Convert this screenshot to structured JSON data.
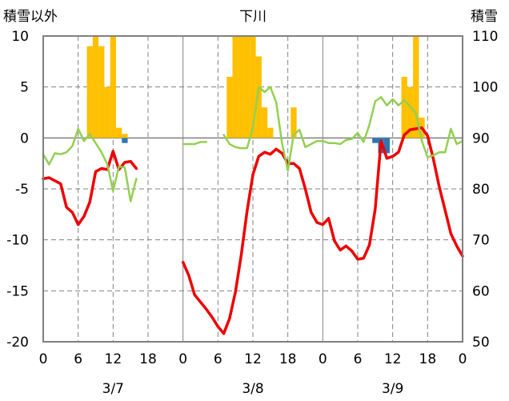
{
  "chart_data": {
    "type": "bar+line",
    "title": "下川",
    "left_axis_label": "積雪以外",
    "right_axis_label": "積雪",
    "left_ylim": [
      -20,
      10
    ],
    "right_ylim": [
      50,
      110
    ],
    "left_ticks": [
      "10",
      "5",
      "0",
      "-5",
      "-10",
      "-15",
      "-20"
    ],
    "left_tick_values": [
      10,
      5,
      0,
      -5,
      -10,
      -15,
      -20
    ],
    "right_ticks": [
      "110",
      "100",
      "90",
      "80",
      "70",
      "60",
      "50"
    ],
    "right_tick_values": [
      110,
      100,
      90,
      80,
      70,
      60,
      50
    ],
    "x_unit": "hour",
    "xlim": [
      0,
      72
    ],
    "x_ticks": [
      "0",
      "6",
      "12",
      "18",
      "0",
      "6",
      "12",
      "18",
      "0",
      "6",
      "12",
      "18",
      "0"
    ],
    "x_tick_hours": [
      0,
      6,
      12,
      18,
      24,
      30,
      36,
      42,
      48,
      54,
      60,
      66,
      72
    ],
    "day_labels": [
      {
        "text": "3/7",
        "hour": 12
      },
      {
        "text": "3/8",
        "hour": 36
      },
      {
        "text": "3/9",
        "hour": 60
      }
    ],
    "grid": {
      "dashed_hours": [
        6,
        12,
        18,
        30,
        36,
        42,
        54,
        60,
        66
      ],
      "solid_hours": [
        24,
        48
      ],
      "dashed_values": [
        5,
        -5,
        -10,
        -15
      ],
      "zero_line": 0
    },
    "series": [
      {
        "name": "snowfall",
        "type": "bar",
        "color": "#ffc000",
        "axis": "left",
        "x": [
          8,
          9,
          10,
          11,
          12,
          13,
          14,
          32,
          33,
          34,
          35,
          36,
          37,
          38,
          39,
          43,
          62,
          63,
          64,
          65
        ],
        "values": [
          9,
          10,
          9,
          5,
          10,
          1,
          0.4,
          6,
          10,
          10,
          10,
          10,
          8,
          3,
          1,
          3,
          6,
          5,
          10,
          2
        ]
      },
      {
        "name": "precipitation_negative",
        "type": "bar",
        "color": "#2e75b6",
        "axis": "left",
        "x": [
          14,
          57,
          58,
          59
        ],
        "values": [
          -0.5,
          -0.5,
          -1.5,
          -1.5
        ]
      },
      {
        "name": "temperature",
        "type": "line",
        "color": "#ee0000",
        "axis": "left",
        "segments": [
          [
            [
              0,
              -4
            ],
            [
              1,
              -3.9
            ],
            [
              2,
              -4.2
            ],
            [
              3,
              -4.5
            ],
            [
              4,
              -6.8
            ],
            [
              5,
              -7.3
            ],
            [
              6,
              -8.5
            ],
            [
              7,
              -7.7
            ],
            [
              8,
              -6.3
            ],
            [
              9,
              -3.3
            ],
            [
              10,
              -3.0
            ],
            [
              11,
              -3.1
            ],
            [
              12,
              -1.3
            ],
            [
              13,
              -3.1
            ],
            [
              14,
              -2.4
            ],
            [
              15,
              -2.3
            ],
            [
              16,
              -3.0
            ]
          ],
          [
            [
              24,
              -12.2
            ],
            [
              25,
              -13.5
            ],
            [
              26,
              -15.4
            ],
            [
              27,
              -16.1
            ],
            [
              28,
              -16.8
            ],
            [
              29,
              -17.6
            ],
            [
              30,
              -18.5
            ],
            [
              31,
              -19.2
            ],
            [
              32,
              -17.7
            ],
            [
              33,
              -15.1
            ],
            [
              34,
              -11.5
            ],
            [
              35,
              -7.2
            ],
            [
              36,
              -3.6
            ],
            [
              37,
              -1.8
            ],
            [
              38,
              -1.4
            ],
            [
              39,
              -1.6
            ],
            [
              40,
              -1.1
            ],
            [
              41,
              -1.5
            ],
            [
              42,
              -2.5
            ],
            [
              43,
              -2.5
            ],
            [
              44,
              -3.0
            ],
            [
              45,
              -5.0
            ],
            [
              46,
              -7.3
            ],
            [
              47,
              -8.3
            ],
            [
              48,
              -8.5
            ],
            [
              49,
              -7.9
            ],
            [
              50,
              -10.1
            ],
            [
              51,
              -11.0
            ],
            [
              52,
              -10.6
            ],
            [
              53,
              -11.1
            ],
            [
              54,
              -11.9
            ],
            [
              55,
              -11.8
            ],
            [
              56,
              -10.5
            ],
            [
              57,
              -7.0
            ],
            [
              58,
              -0.3
            ],
            [
              59,
              -2.0
            ],
            [
              60,
              -1.8
            ],
            [
              61,
              -1.4
            ],
            [
              62,
              0.3
            ],
            [
              63,
              0.8
            ],
            [
              64,
              0.9
            ],
            [
              65,
              1.0
            ],
            [
              66,
              0.2
            ],
            [
              67,
              -2.1
            ],
            [
              68,
              -4.8
            ],
            [
              69,
              -7.1
            ],
            [
              70,
              -9.4
            ],
            [
              71,
              -10.6
            ],
            [
              72,
              -11.6
            ]
          ]
        ]
      },
      {
        "name": "wind",
        "type": "line",
        "color": "#92d050",
        "axis": "left",
        "segments": [
          [
            [
              0,
              -1.6
            ],
            [
              1,
              -2.6
            ],
            [
              2,
              -1.5
            ],
            [
              3,
              -1.6
            ],
            [
              4,
              -1.4
            ],
            [
              5,
              -0.8
            ],
            [
              6,
              0.9
            ],
            [
              7,
              -0.3
            ],
            [
              8,
              0.4
            ],
            [
              9,
              -0.5
            ],
            [
              10,
              -1.4
            ],
            [
              11,
              -2.6
            ],
            [
              12,
              -5.2
            ],
            [
              13,
              -2.8
            ],
            [
              14,
              -2.9
            ],
            [
              15,
              -6.2
            ],
            [
              16,
              -4.0
            ]
          ],
          [
            [
              24,
              -0.6
            ],
            [
              25,
              -0.6
            ],
            [
              26,
              -0.6
            ],
            [
              27,
              -0.4
            ],
            [
              28,
              -0.4
            ]
          ],
          [
            [
              31,
              0.3
            ],
            [
              32,
              -0.6
            ],
            [
              33,
              -0.9
            ],
            [
              34,
              -1.0
            ],
            [
              35,
              -1.0
            ],
            [
              36,
              1.0
            ],
            [
              37,
              5.0
            ],
            [
              38,
              4.5
            ],
            [
              39,
              5.0
            ],
            [
              40,
              3.5
            ],
            [
              41,
              -0.5
            ],
            [
              42,
              -3.2
            ],
            [
              43,
              0.3
            ],
            [
              44,
              0.8
            ],
            [
              45,
              -0.9
            ],
            [
              46,
              -0.6
            ],
            [
              47,
              -0.3
            ],
            [
              48,
              -0.3
            ],
            [
              49,
              -0.5
            ],
            [
              50,
              -0.5
            ],
            [
              51,
              -0.6
            ],
            [
              52,
              -0.2
            ],
            [
              53,
              -0.1
            ],
            [
              54,
              0.5
            ],
            [
              55,
              -0.4
            ],
            [
              56,
              1.3
            ],
            [
              57,
              3.6
            ],
            [
              58,
              4.0
            ],
            [
              59,
              3.2
            ],
            [
              60,
              3.8
            ],
            [
              61,
              3.2
            ],
            [
              62,
              3.7
            ],
            [
              63,
              3.1
            ],
            [
              64,
              2.4
            ],
            [
              65,
              -0.3
            ],
            [
              66,
              -1.9
            ],
            [
              67,
              -1.7
            ],
            [
              68,
              -1.4
            ],
            [
              69,
              -1.4
            ],
            [
              70,
              0.9
            ],
            [
              71,
              -0.6
            ],
            [
              72,
              -0.3
            ]
          ]
        ]
      }
    ]
  }
}
